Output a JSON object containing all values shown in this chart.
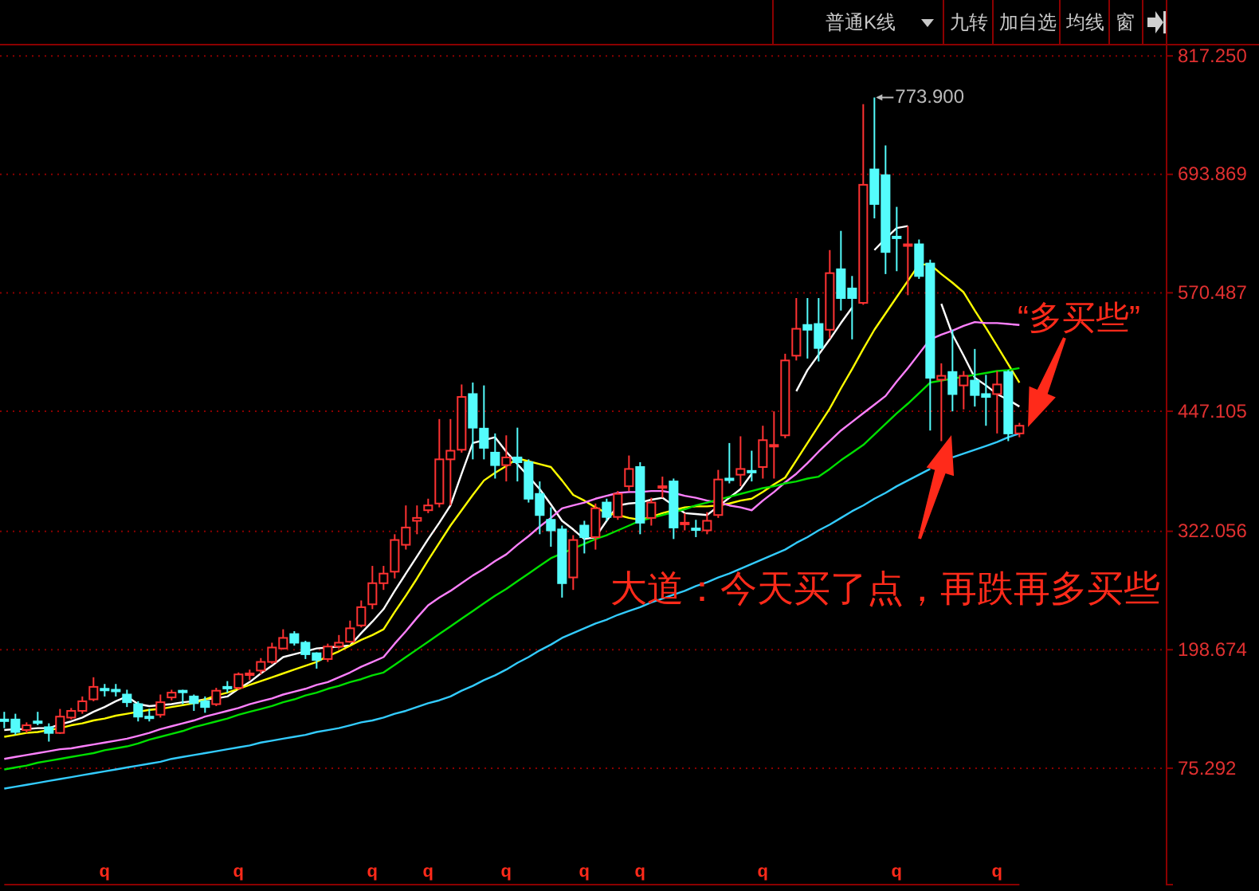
{
  "chart_data": {
    "type": "candlestick",
    "categories": [
      null,
      null,
      null,
      null,
      null,
      null,
      null,
      null,
      null,
      null,
      null,
      null,
      null,
      null,
      null,
      null,
      null,
      null,
      null,
      null,
      null,
      null,
      null,
      null,
      null,
      null,
      null,
      null,
      null,
      null,
      null,
      null,
      null,
      null,
      null,
      null,
      null,
      null,
      null,
      null,
      null,
      null,
      null,
      null,
      null,
      null,
      null,
      null,
      null,
      null,
      null,
      null,
      null,
      null,
      null,
      null,
      null,
      null,
      null,
      null,
      null,
      null,
      null,
      null,
      null,
      null,
      null,
      null,
      null,
      null,
      null,
      null,
      null,
      null,
      null,
      null,
      null,
      null,
      null,
      null,
      null,
      null,
      null,
      null,
      null,
      null,
      null,
      null,
      null,
      null,
      null,
      null
    ],
    "ohlc": [
      [
        126,
        134,
        117,
        125
      ],
      [
        126,
        132,
        110,
        113
      ],
      [
        115,
        123,
        112,
        120
      ],
      [
        124,
        134,
        120,
        123
      ],
      [
        118,
        122,
        103,
        112
      ],
      [
        112,
        137,
        111,
        129
      ],
      [
        128,
        138,
        126,
        135
      ],
      [
        135,
        150,
        132,
        145
      ],
      [
        147,
        170,
        145,
        160
      ],
      [
        158,
        163,
        150,
        157
      ],
      [
        157,
        163,
        150,
        156
      ],
      [
        152,
        157,
        139,
        144
      ],
      [
        142,
        145,
        124,
        129
      ],
      [
        129,
        137,
        124,
        128
      ],
      [
        131,
        152,
        128,
        144
      ],
      [
        149,
        157,
        146,
        154
      ],
      [
        156,
        157,
        142,
        155
      ],
      [
        150,
        152,
        135,
        143
      ],
      [
        145,
        150,
        133,
        139
      ],
      [
        142,
        159,
        140,
        156
      ],
      [
        160,
        166,
        154,
        159
      ],
      [
        159,
        175,
        157,
        173
      ],
      [
        173,
        178,
        167,
        174
      ],
      [
        177,
        190,
        173,
        186
      ],
      [
        186,
        206,
        184,
        201
      ],
      [
        200,
        220,
        199,
        211
      ],
      [
        215,
        218,
        203,
        206
      ],
      [
        206,
        208,
        189,
        194
      ],
      [
        195,
        196,
        179,
        188
      ],
      [
        189,
        205,
        186,
        202
      ],
      [
        202,
        214,
        200,
        206
      ],
      [
        207,
        229,
        206,
        221
      ],
      [
        224,
        250,
        222,
        243
      ],
      [
        246,
        286,
        241,
        268
      ],
      [
        268,
        286,
        261,
        278
      ],
      [
        280,
        319,
        273,
        313
      ],
      [
        308,
        349,
        303,
        326
      ],
      [
        333,
        349,
        319,
        336
      ],
      [
        344,
        356,
        341,
        349
      ],
      [
        351,
        439,
        347,
        397
      ],
      [
        397,
        439,
        349,
        406
      ],
      [
        407,
        475,
        404,
        462
      ],
      [
        465,
        477,
        397,
        430
      ],
      [
        429,
        474,
        397,
        409
      ],
      [
        404,
        424,
        377,
        391
      ],
      [
        391,
        422,
        374,
        399
      ],
      [
        399,
        430,
        374,
        394
      ],
      [
        394,
        397,
        352,
        356
      ],
      [
        361,
        374,
        319,
        339
      ],
      [
        334,
        347,
        306,
        323
      ],
      [
        324,
        328,
        253,
        268
      ],
      [
        274,
        318,
        261,
        313
      ],
      [
        328,
        333,
        299,
        316
      ],
      [
        316,
        351,
        303,
        346
      ],
      [
        352,
        356,
        333,
        337
      ],
      [
        337,
        364,
        334,
        361
      ],
      [
        369,
        401,
        364,
        387
      ],
      [
        389,
        394,
        319,
        331
      ],
      [
        336,
        357,
        328,
        352
      ],
      [
        368,
        379,
        357,
        369
      ],
      [
        374,
        377,
        314,
        326
      ],
      [
        330,
        341,
        323,
        331
      ],
      [
        325,
        334,
        316,
        324
      ],
      [
        323,
        342,
        319,
        333
      ],
      [
        339,
        386,
        336,
        376
      ],
      [
        377,
        414,
        372,
        376
      ],
      [
        381,
        421,
        369,
        387
      ],
      [
        385,
        406,
        374,
        384
      ],
      [
        389,
        432,
        377,
        417
      ],
      [
        411,
        447,
        377,
        412
      ],
      [
        422,
        507,
        419,
        500
      ],
      [
        505,
        565,
        500,
        533
      ],
      [
        537,
        565,
        502,
        532
      ],
      [
        538,
        565,
        499,
        513
      ],
      [
        532,
        615,
        523,
        591
      ],
      [
        595,
        635,
        552,
        565
      ],
      [
        575,
        588,
        522,
        565
      ],
      [
        560,
        767,
        558,
        683
      ],
      [
        699,
        773.9,
        648,
        663
      ],
      [
        693,
        724,
        590,
        613
      ],
      [
        629,
        660,
        593,
        628
      ],
      [
        620,
        640,
        568,
        621
      ],
      [
        621,
        626,
        585,
        588
      ],
      [
        601,
        605,
        427,
        482
      ],
      [
        480,
        497,
        416,
        484
      ],
      [
        488,
        532,
        447,
        465
      ],
      [
        474,
        489,
        449,
        484
      ],
      [
        479,
        512,
        452,
        464
      ],
      [
        465,
        485,
        432,
        462
      ],
      [
        465,
        489,
        424,
        475
      ],
      [
        488,
        490,
        416,
        424
      ],
      [
        424,
        435,
        420,
        432
      ]
    ],
    "colors": [
      "#54fcfc",
      "#54fcfc",
      "#ff3232",
      "#54fcfc",
      "#54fcfc",
      "#ff3232",
      "#ff3232",
      "#ff3232",
      "#ff3232",
      "#54fcfc",
      "#54fcfc",
      "#54fcfc",
      "#54fcfc",
      "#54fcfc",
      "#ff3232",
      "#ff3232",
      "#54fcfc",
      "#54fcfc",
      "#54fcfc",
      "#ff3232",
      "#54fcfc",
      "#ff3232",
      "#ff3232",
      "#ff3232",
      "#ff3232",
      "#ff3232",
      "#54fcfc",
      "#54fcfc",
      "#54fcfc",
      "#ff3232",
      "#ff3232",
      "#ff3232",
      "#ff3232",
      "#ff3232",
      "#ff3232",
      "#ff3232",
      "#ff3232",
      "#ff3232",
      "#ff3232",
      "#ff3232",
      "#ff3232",
      "#ff3232",
      "#54fcfc",
      "#54fcfc",
      "#54fcfc",
      "#ff3232",
      "#54fcfc",
      "#54fcfc",
      "#54fcfc",
      "#54fcfc",
      "#54fcfc",
      "#ff3232",
      "#54fcfc",
      "#ff3232",
      "#54fcfc",
      "#ff3232",
      "#ff3232",
      "#54fcfc",
      "#ff3232",
      "#ff3232",
      "#54fcfc",
      "#ff3232",
      "#54fcfc",
      "#ff3232",
      "#ff3232",
      "#54fcfc",
      "#ff3232",
      "#54fcfc",
      "#ff3232",
      "#ff3232",
      "#ff3232",
      "#ff3232",
      "#54fcfc",
      "#54fcfc",
      "#ff3232",
      "#54fcfc",
      "#54fcfc",
      "#ff3232",
      "#54fcfc",
      "#54fcfc",
      "#54fcfc",
      "#ff3232",
      "#54fcfc",
      "#54fcfc",
      "#ff3232",
      "#54fcfc",
      "#ff3232",
      "#54fcfc",
      "#54fcfc",
      "#ff3232",
      "#54fcfc",
      "#ff3232"
    ],
    "value_labels": [
      null,
      null,
      null,
      null,
      null,
      null,
      null,
      null,
      null,
      "q",
      null,
      null,
      null,
      null,
      null,
      null,
      null,
      null,
      null,
      null,
      null,
      "q",
      null,
      null,
      null,
      null,
      null,
      null,
      null,
      null,
      null,
      null,
      null,
      "q",
      null,
      null,
      null,
      null,
      "q",
      null,
      null,
      null,
      null,
      null,
      null,
      "q",
      null,
      null,
      null,
      null,
      null,
      null,
      "q",
      null,
      null,
      null,
      null,
      "q",
      null,
      null,
      null,
      null,
      null,
      null,
      null,
      null,
      null,
      null,
      "q",
      null,
      null,
      null,
      null,
      null,
      null,
      null,
      null,
      null,
      null,
      null,
      "q",
      null,
      null,
      null,
      null,
      null,
      null,
      null,
      null,
      "q",
      null,
      null
    ],
    "series": [
      {
        "type": "line",
        "color": "#ffffff",
        "values": [
          115,
          116,
          116,
          117,
          117,
          121,
          124,
          128,
          134,
          139,
          145,
          150,
          142,
          140,
          141,
          142,
          144,
          145,
          147,
          148,
          150,
          158,
          165,
          174,
          182,
          191,
          194,
          197,
          200,
          201,
          202,
          203,
          216,
          228,
          241,
          260,
          278,
          296,
          314,
          331,
          349,
          382,
          414,
          417,
          420,
          405,
          392,
          379,
          366,
          350,
          333,
          324,
          314,
          316,
          333,
          349,
          351,
          352,
          355,
          357,
          349,
          341,
          340,
          339,
          348,
          357,
          366,
          382,
          null,
          null,
          null,
          468,
          490,
          506,
          522,
          539,
          555,
          null,
          615,
          627,
          638,
          640,
          null,
          null,
          559,
          527,
          505,
          482,
          474,
          465,
          459,
          452
        ]
      },
      {
        "type": "line",
        "color": "#ffff00",
        "values": [
          108,
          110,
          112,
          113,
          115,
          117,
          120,
          122,
          125,
          127,
          130,
          132,
          134,
          136,
          137,
          139,
          141,
          143,
          147,
          151,
          154,
          158,
          162,
          166,
          170,
          174,
          178,
          182,
          186,
          192,
          197,
          203,
          209,
          214,
          220,
          238,
          255,
          273,
          292,
          310,
          328,
          344,
          360,
          375,
          383,
          390,
          398,
          395,
          392,
          389,
          375,
          360,
          354,
          347,
          341,
          339,
          336,
          334,
          337,
          341,
          344,
          347,
          348,
          348,
          349,
          351,
          354,
          356,
          363,
          371,
          378,
          396,
          414,
          432,
          450,
          471,
          491,
          512,
          532,
          549,
          566,
          583,
          600,
          600,
          590,
          581,
          571,
          552,
          534,
          515,
          496,
          477
        ]
      },
      {
        "type": "line",
        "color": "#ff80ff",
        "values": [
          85,
          87,
          89,
          91,
          93,
          95,
          96,
          98,
          100,
          102,
          104,
          106,
          109,
          112,
          116,
          119,
          122,
          125,
          129,
          132,
          135,
          138,
          142,
          145,
          148,
          152,
          155,
          158,
          162,
          165,
          170,
          175,
          181,
          186,
          191,
          205,
          218,
          232,
          245,
          253,
          260,
          268,
          276,
          283,
          291,
          298,
          308,
          317,
          327,
          336,
          346,
          349,
          352,
          356,
          359,
          362,
          363,
          363,
          364,
          364,
          362,
          359,
          357,
          354,
          352,
          349,
          347,
          344,
          354,
          363,
          373,
          382,
          393,
          405,
          416,
          427,
          436,
          445,
          454,
          463,
          478,
          492,
          507,
          522,
          527,
          531,
          536,
          540,
          539,
          539,
          538,
          537
        ]
      },
      {
        "type": "line",
        "color": "#00e000",
        "values": [
          74,
          76,
          78,
          81,
          83,
          85,
          87,
          89,
          91,
          94,
          96,
          98,
          101,
          105,
          108,
          111,
          114,
          118,
          121,
          124,
          127,
          131,
          134,
          137,
          140,
          144,
          147,
          151,
          154,
          158,
          161,
          165,
          168,
          172,
          175,
          183,
          191,
          199,
          207,
          215,
          223,
          231,
          239,
          247,
          255,
          262,
          270,
          278,
          286,
          294,
          299,
          304,
          309,
          314,
          318,
          323,
          328,
          333,
          336,
          339,
          342,
          345,
          349,
          352,
          355,
          358,
          361,
          364,
          367,
          369,
          372,
          374,
          377,
          379,
          387,
          396,
          404,
          412,
          423,
          434,
          445,
          455,
          466,
          477,
          479,
          481,
          483,
          485,
          487,
          489,
          490,
          492
        ]
      },
      {
        "type": "line",
        "color": "#33ccff",
        "values": [
          54,
          56,
          58,
          60,
          62,
          64,
          66,
          68,
          70,
          72,
          74,
          76,
          78,
          80,
          82,
          85,
          87,
          89,
          91,
          93,
          95,
          97,
          99,
          102,
          104,
          106,
          108,
          110,
          113,
          115,
          117,
          120,
          123,
          125,
          128,
          132,
          135,
          139,
          143,
          146,
          150,
          156,
          161,
          167,
          172,
          178,
          185,
          191,
          198,
          204,
          211,
          216,
          221,
          226,
          230,
          235,
          239,
          243,
          248,
          252,
          256,
          260,
          265,
          269,
          274,
          278,
          283,
          288,
          293,
          298,
          303,
          310,
          316,
          323,
          329,
          336,
          343,
          349,
          356,
          362,
          369,
          375,
          381,
          387,
          null,
          399,
          403,
          407,
          411,
          415,
          420,
          424
        ]
      }
    ],
    "ylim": [
      -46,
      829
    ],
    "yticks": [
      75.292,
      198.674,
      322.056,
      447.105,
      570.487,
      693.869,
      {
        "value": 817.25,
        "label": "817.250"
      }
    ],
    "grid": "y",
    "tick_labels": "y",
    "annotations": [
      "普通K线",
      "九转",
      "加自选",
      "均线",
      "窗",
      "大道：今天买了点，再跌再多买些",
      "“多买些”",
      "773.900"
    ]
  }
}
